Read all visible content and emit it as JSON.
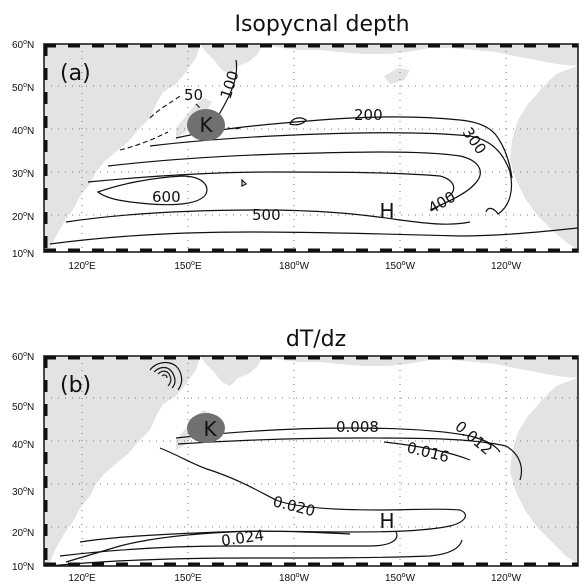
{
  "panels": [
    {
      "title": "Isopycnal depth",
      "label": "(a)",
      "y_ticks": [
        "60",
        "50",
        "40",
        "30",
        "20",
        "10"
      ],
      "x_ticks": [
        {
          "deg": "120",
          "hemi": "E"
        },
        {
          "deg": "150",
          "hemi": "E"
        },
        {
          "deg": "180",
          "hemi": "W"
        },
        {
          "deg": "150",
          "hemi": "W"
        },
        {
          "deg": "120",
          "hemi": "W"
        }
      ],
      "contour_labels": [
        "50",
        "100",
        "200",
        "300",
        "400",
        "500",
        "600"
      ],
      "marker_k": "K",
      "marker_h": "H"
    },
    {
      "title": "dT/dz",
      "label": "(b)",
      "y_ticks": [
        "60",
        "50",
        "40",
        "30",
        "20",
        "10"
      ],
      "x_ticks": [
        {
          "deg": "120",
          "hemi": "E"
        },
        {
          "deg": "150",
          "hemi": "E"
        },
        {
          "deg": "180",
          "hemi": "W"
        },
        {
          "deg": "150",
          "hemi": "W"
        },
        {
          "deg": "120",
          "hemi": "W"
        }
      ],
      "contour_labels": [
        "0.008",
        "0.012",
        "0.016",
        "0.020",
        "0.024"
      ],
      "marker_k": "K",
      "marker_h": "H"
    }
  ],
  "units": {
    "degree": "o",
    "north": "N"
  },
  "colors": {
    "land": "#e3e3e3",
    "marker": "#707070",
    "contour": "#111111"
  }
}
